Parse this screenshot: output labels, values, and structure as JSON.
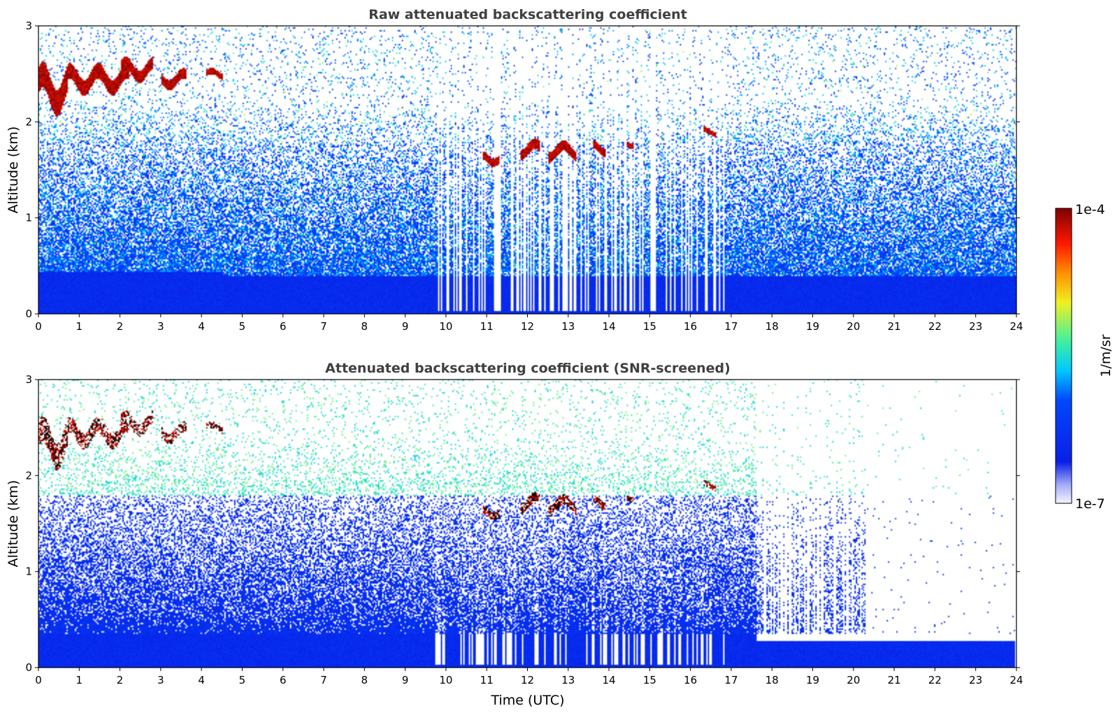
{
  "chart_data": [
    {
      "type": "heatmap",
      "title": "Raw attenuated backscattering coefficient",
      "xlabel": "",
      "ylabel": "Altitude (km)",
      "xlim": [
        0,
        24
      ],
      "ylim": [
        0,
        3
      ],
      "xticks": [
        0,
        1,
        2,
        3,
        4,
        5,
        6,
        7,
        8,
        9,
        10,
        11,
        12,
        13,
        14,
        15,
        16,
        17,
        18,
        19,
        20,
        21,
        22,
        23,
        24
      ],
      "yticks": [
        0,
        1,
        2,
        3
      ],
      "screened": false,
      "cloud_layers": [
        {
          "t0": 0.0,
          "t1": 0.7,
          "z": 2.35,
          "dz": 0.25
        },
        {
          "t0": 0.7,
          "t1": 2.2,
          "z": 2.45,
          "dz": 0.15
        },
        {
          "t0": 2.0,
          "t1": 2.8,
          "z": 2.55,
          "dz": 0.12
        },
        {
          "t0": 3.0,
          "t1": 3.6,
          "z": 2.45,
          "dz": 0.1
        },
        {
          "t0": 4.1,
          "t1": 4.5,
          "z": 2.5,
          "dz": 0.06
        },
        {
          "t0": 10.9,
          "t1": 11.3,
          "z": 1.63,
          "dz": 0.08
        },
        {
          "t0": 11.8,
          "t1": 12.3,
          "z": 1.72,
          "dz": 0.1
        },
        {
          "t0": 12.5,
          "t1": 13.2,
          "z": 1.7,
          "dz": 0.1
        },
        {
          "t0": 13.6,
          "t1": 13.9,
          "z": 1.73,
          "dz": 0.08
        },
        {
          "t0": 14.4,
          "t1": 14.6,
          "z": 1.78,
          "dz": 0.05
        },
        {
          "t0": 16.3,
          "t1": 16.6,
          "z": 1.9,
          "dz": 0.05
        }
      ]
    },
    {
      "type": "heatmap",
      "title": "Attenuated backscattering coefficient (SNR-screened)",
      "xlabel": "Time (UTC)",
      "ylabel": "Altitude (km)",
      "xlim": [
        0,
        24
      ],
      "ylim": [
        0,
        3
      ],
      "xticks": [
        0,
        1,
        2,
        3,
        4,
        5,
        6,
        7,
        8,
        9,
        10,
        11,
        12,
        13,
        14,
        15,
        16,
        17,
        18,
        19,
        20,
        21,
        22,
        23,
        24
      ],
      "yticks": [
        0,
        1,
        2,
        3
      ],
      "screened": true,
      "cloud_layers": [
        {
          "t0": 0.0,
          "t1": 0.7,
          "z": 2.35,
          "dz": 0.25
        },
        {
          "t0": 0.7,
          "t1": 2.2,
          "z": 2.45,
          "dz": 0.15
        },
        {
          "t0": 2.0,
          "t1": 2.8,
          "z": 2.55,
          "dz": 0.12
        },
        {
          "t0": 3.0,
          "t1": 3.6,
          "z": 2.45,
          "dz": 0.1
        },
        {
          "t0": 4.1,
          "t1": 4.5,
          "z": 2.5,
          "dz": 0.06
        },
        {
          "t0": 10.9,
          "t1": 11.3,
          "z": 1.63,
          "dz": 0.08
        },
        {
          "t0": 11.8,
          "t1": 12.3,
          "z": 1.72,
          "dz": 0.1
        },
        {
          "t0": 12.5,
          "t1": 13.2,
          "z": 1.7,
          "dz": 0.1
        },
        {
          "t0": 13.6,
          "t1": 13.9,
          "z": 1.73,
          "dz": 0.08
        },
        {
          "t0": 14.4,
          "t1": 14.6,
          "z": 1.78,
          "dz": 0.05
        },
        {
          "t0": 16.3,
          "t1": 16.6,
          "z": 1.9,
          "dz": 0.05
        }
      ]
    }
  ],
  "colorbar": {
    "label": "1/m/sr",
    "max_label": "1e-4",
    "min_label": "1e-7",
    "scale": "log",
    "colormap": "jet-like (white → blue → cyan → green → yellow → red → dark red)"
  },
  "colors": {
    "title": "#404040",
    "background_blue": "#0a1fe6",
    "cloud_red": "#a00000",
    "cloud_black": "#000000"
  }
}
